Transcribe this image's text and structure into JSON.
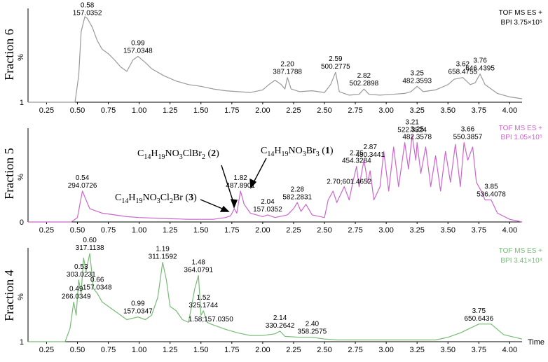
{
  "chart_data": [
    {
      "type": "line",
      "panel": "Fraction 6",
      "ylabel": "%",
      "y_tick": "1",
      "color": "#999999",
      "legend": [
        "TOF MS ES +",
        "BPI 3.75×10⁵"
      ],
      "xlim": [
        0.1,
        4.1
      ],
      "ylim": [
        0,
        100
      ],
      "xticks": [
        "0.25",
        "0.50",
        "0.75",
        "1.00",
        "1.25",
        "1.50",
        "1.75",
        "2.00",
        "2.25",
        "2.50",
        "2.75",
        "3.00",
        "3.25",
        "3.50",
        "3.75",
        "4.00"
      ],
      "x": [
        0.1,
        0.48,
        0.51,
        0.53,
        0.56,
        0.58,
        0.62,
        0.66,
        0.7,
        0.75,
        0.8,
        0.85,
        0.9,
        0.95,
        0.99,
        1.05,
        1.1,
        1.2,
        1.3,
        1.4,
        1.5,
        1.6,
        1.7,
        1.8,
        1.9,
        2.0,
        2.05,
        2.1,
        2.15,
        2.18,
        2.2,
        2.23,
        2.3,
        2.4,
        2.5,
        2.55,
        2.59,
        2.62,
        2.7,
        2.78,
        2.82,
        2.86,
        2.95,
        3.05,
        3.15,
        3.2,
        3.25,
        3.3,
        3.4,
        3.5,
        3.55,
        3.62,
        3.68,
        3.72,
        3.76,
        3.8,
        3.9,
        4.0,
        4.1
      ],
      "y": [
        0,
        0,
        30,
        80,
        97,
        95,
        85,
        70,
        60,
        55,
        48,
        40,
        35,
        48,
        52,
        45,
        38,
        30,
        24,
        20,
        18,
        15,
        13,
        12,
        11,
        14,
        20,
        25,
        20,
        15,
        28,
        15,
        12,
        13,
        11,
        20,
        34,
        12,
        8,
        9,
        15,
        9,
        8,
        9,
        10,
        12,
        18,
        12,
        14,
        20,
        26,
        28,
        20,
        22,
        32,
        20,
        10,
        6,
        4
      ],
      "labels": [
        {
          "x": 0.58,
          "y": 95,
          "time": "0.58",
          "mz": "157.0352"
        },
        {
          "x": 0.99,
          "y": 52,
          "time": "0.99",
          "mz": "157.0348"
        },
        {
          "x": 2.2,
          "y": 28,
          "time": "2.20",
          "mz": "387.1788"
        },
        {
          "x": 2.59,
          "y": 34,
          "time": "2.59",
          "mz": "500.2775"
        },
        {
          "x": 2.82,
          "y": 15,
          "time": "2.82",
          "mz": "502.2898"
        },
        {
          "x": 3.25,
          "y": 18,
          "time": "3.25",
          "mz": "482.3593"
        },
        {
          "x": 3.62,
          "y": 28,
          "time": "3.62",
          "mz": "658.4755"
        },
        {
          "x": 3.76,
          "y": 32,
          "time": "3.76",
          "mz": "646.4395"
        }
      ]
    },
    {
      "type": "line",
      "panel": "Fraction 5",
      "ylabel": "%",
      "y_tick": "0",
      "color": "#cc66cc",
      "legend": [
        "TOF MS ES +",
        "BPI 1.05×10⁵"
      ],
      "xlim": [
        0.1,
        4.1
      ],
      "ylim": [
        0,
        100
      ],
      "xticks": [
        "0.25",
        "0.50",
        "0.75",
        "1.00",
        "1.25",
        "1.50",
        "1.75",
        "2.00",
        "2.25",
        "2.50",
        "2.75",
        "3.00",
        "3.25",
        "3.50",
        "3.75",
        "4.00"
      ],
      "x": [
        0.1,
        0.45,
        0.5,
        0.52,
        0.54,
        0.57,
        0.6,
        0.7,
        0.8,
        0.9,
        1.0,
        1.2,
        1.4,
        1.6,
        1.7,
        1.74,
        1.77,
        1.79,
        1.82,
        1.85,
        1.9,
        2.0,
        2.04,
        2.1,
        2.2,
        2.25,
        2.28,
        2.31,
        2.35,
        2.4,
        2.5,
        2.53,
        2.57,
        2.6,
        2.66,
        2.7,
        2.73,
        2.76,
        2.78,
        2.82,
        2.85,
        2.87,
        2.9,
        2.95,
        2.98,
        3.02,
        3.06,
        3.1,
        3.15,
        3.18,
        3.21,
        3.24,
        3.25,
        3.28,
        3.32,
        3.36,
        3.4,
        3.44,
        3.48,
        3.52,
        3.56,
        3.6,
        3.63,
        3.66,
        3.7,
        3.73,
        3.77,
        3.8,
        3.85,
        3.9,
        4.0,
        4.1
      ],
      "y": [
        0,
        0,
        5,
        20,
        35,
        25,
        15,
        10,
        8,
        6,
        5,
        4,
        3,
        3,
        5,
        7,
        15,
        10,
        35,
        20,
        10,
        6,
        8,
        5,
        8,
        15,
        22,
        12,
        20,
        8,
        5,
        25,
        35,
        22,
        40,
        25,
        45,
        63,
        40,
        70,
        45,
        58,
        25,
        40,
        80,
        35,
        85,
        40,
        90,
        60,
        98,
        70,
        90,
        55,
        85,
        40,
        75,
        35,
        80,
        45,
        88,
        40,
        90,
        70,
        85,
        45,
        35,
        25,
        25,
        10,
        3,
        0
      ],
      "labels": [
        {
          "x": 0.54,
          "y": 35,
          "time": "0.54",
          "mz": "294.0726"
        },
        {
          "x": 1.82,
          "y": 35,
          "time": "1.82",
          "mz": "487.8901"
        },
        {
          "x": 2.04,
          "y": 8,
          "time": "2.04",
          "mz": "157.0352"
        },
        {
          "x": 2.28,
          "y": 22,
          "time": "2.28",
          "mz": "582.2831"
        },
        {
          "x": 2.7,
          "y": 40,
          "time": "2.70;601.4652",
          "mz": ""
        },
        {
          "x": 2.76,
          "y": 63,
          "time": "2.76",
          "mz": "454.3284"
        },
        {
          "x": 2.87,
          "y": 70,
          "time": "2.87",
          "mz": "480.3441"
        },
        {
          "x": 3.21,
          "y": 98,
          "time": "3.21",
          "mz": "522.3524"
        },
        {
          "x": 3.25,
          "y": 90,
          "time": "3.25",
          "mz": "482.3578"
        },
        {
          "x": 3.66,
          "y": 90,
          "time": "3.66",
          "mz": "550.3857"
        },
        {
          "x": 3.85,
          "y": 25,
          "time": "3.85",
          "mz": "536.4078"
        }
      ],
      "annotations": [
        {
          "id": "cmpd2",
          "formula": [
            "C",
            "14",
            "H",
            "19",
            "NO",
            "3",
            "ClBr",
            "2",
            " (",
            "2",
            ")"
          ]
        },
        {
          "id": "cmpd1",
          "formula": [
            "C",
            "14",
            "H",
            "19",
            "NO",
            "3",
            "Br",
            "3",
            " (",
            "1",
            ")"
          ]
        },
        {
          "id": "cmpd3",
          "formula": [
            "C",
            "14",
            "H",
            "19",
            "NO",
            "3",
            "Cl",
            "2",
            "Br (",
            "3",
            ")"
          ]
        }
      ]
    },
    {
      "type": "line",
      "panel": "Fraction 4",
      "ylabel": "%",
      "y_tick": "1",
      "color": "#77bb77",
      "legend": [
        "TOF MS ES +",
        "BPI 3.41×10⁴"
      ],
      "xlabel": "Time",
      "xlim": [
        0.1,
        4.1
      ],
      "ylim": [
        0,
        100
      ],
      "xticks": [
        "0.25",
        "0.50",
        "0.75",
        "1.00",
        "1.25",
        "1.50",
        "1.75",
        "2.00",
        "2.25",
        "2.50",
        "2.75",
        "3.00",
        "3.25",
        "3.50",
        "3.75",
        "4.00"
      ],
      "x": [
        0.1,
        0.4,
        0.44,
        0.47,
        0.49,
        0.51,
        0.53,
        0.55,
        0.57,
        0.6,
        0.63,
        0.66,
        0.7,
        0.8,
        0.9,
        0.99,
        1.05,
        1.1,
        1.15,
        1.19,
        1.22,
        1.25,
        1.3,
        1.35,
        1.4,
        1.45,
        1.48,
        1.5,
        1.52,
        1.55,
        1.58,
        1.62,
        1.7,
        1.8,
        1.9,
        2.0,
        2.1,
        2.14,
        2.18,
        2.3,
        2.4,
        2.5,
        2.6,
        3.0,
        3.4,
        3.5,
        3.6,
        3.75,
        3.85,
        3.95,
        4.1
      ],
      "y": [
        0,
        0,
        15,
        45,
        30,
        70,
        55,
        95,
        80,
        100,
        60,
        55,
        45,
        35,
        25,
        28,
        25,
        30,
        50,
        90,
        70,
        40,
        35,
        25,
        22,
        60,
        75,
        30,
        35,
        22,
        20,
        18,
        14,
        10,
        7,
        7,
        9,
        12,
        6,
        5,
        5,
        3,
        2,
        2,
        2,
        5,
        10,
        20,
        20,
        8,
        3
      ],
      "labels": [
        {
          "x": 0.49,
          "y": 45,
          "time": "0.49",
          "mz": "266.0349"
        },
        {
          "x": 0.53,
          "y": 70,
          "time": "0.53",
          "mz": "303.0231"
        },
        {
          "x": 0.6,
          "y": 100,
          "time": "0.60",
          "mz": "317.1138"
        },
        {
          "x": 0.66,
          "y": 55,
          "time": "0.66",
          "mz": "157.0348"
        },
        {
          "x": 0.99,
          "y": 28,
          "time": "0.99",
          "mz": "157.0347"
        },
        {
          "x": 1.19,
          "y": 90,
          "time": "1.19",
          "mz": "311.1592"
        },
        {
          "x": 1.48,
          "y": 75,
          "time": "1.48",
          "mz": "364.0791"
        },
        {
          "x": 1.52,
          "y": 35,
          "time": "1.52",
          "mz": "325.1744"
        },
        {
          "x": 1.58,
          "y": 20,
          "time": "1.58;157.0350",
          "mz": ""
        },
        {
          "x": 2.14,
          "y": 12,
          "time": "2.14",
          "mz": "330.2642"
        },
        {
          "x": 2.4,
          "y": 5,
          "time": "2.40",
          "mz": "358.2575"
        },
        {
          "x": 3.75,
          "y": 20,
          "time": "3.75",
          "mz": "650.6436"
        }
      ]
    }
  ]
}
